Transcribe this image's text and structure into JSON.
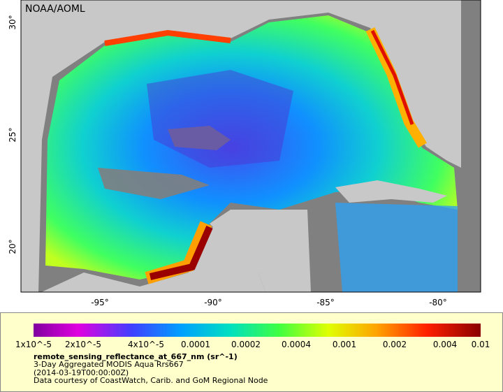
{
  "map": {
    "credit": "NOAA/AOML",
    "lat_ticks": [
      "30°",
      "25°",
      "20°"
    ],
    "lon_ticks": [
      "-95°",
      "-90°",
      "-85°",
      "-80°"
    ]
  },
  "colorbar": {
    "labels": [
      "1x10^-5",
      "2x10^-5",
      "4x10^-5",
      "0.0001",
      "0.0002",
      "0.0004",
      "0.001",
      "0.002",
      "0.004",
      "0.01"
    ]
  },
  "caption": {
    "variable": "remote_sensing_reflectance_at_667_nm (sr^-1)",
    "product": "3-Day Aggregated MODIS Aqua Rrs667",
    "time": "(2014-03-19T00:00:00Z)",
    "source": "Data courtesy of CoastWatch, Carib. and GoM Regional Node"
  }
}
